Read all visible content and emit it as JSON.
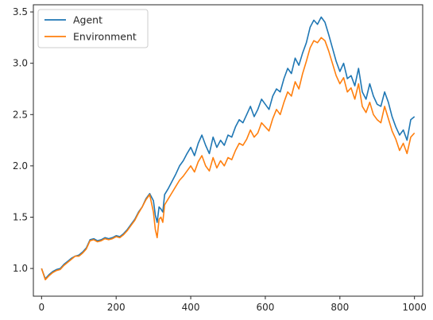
{
  "colors": {
    "agent": "#1f77b4",
    "environment": "#ff7f0e",
    "axis": "#262626",
    "legend_border": "#cccccc"
  },
  "chart_data": {
    "type": "line",
    "title": "",
    "xlabel": "",
    "ylabel": "",
    "xlim": [
      -22,
      1022
    ],
    "ylim": [
      0.73,
      3.57
    ],
    "xticks": [
      0,
      200,
      400,
      600,
      800,
      1000
    ],
    "yticks": [
      1.0,
      1.5,
      2.0,
      2.5,
      3.0,
      3.5
    ],
    "xtick_labels": [
      "0",
      "200",
      "400",
      "600",
      "800",
      "1000"
    ],
    "ytick_labels": [
      "1.0",
      "1.5",
      "2.0",
      "2.5",
      "3.0",
      "3.5"
    ],
    "grid": false,
    "legend_position": "top-left",
    "series": [
      {
        "name": "Agent",
        "color_key": "agent",
        "x": [
          0,
          10,
          20,
          30,
          40,
          50,
          60,
          70,
          80,
          90,
          100,
          110,
          120,
          130,
          140,
          150,
          160,
          170,
          180,
          190,
          200,
          210,
          220,
          230,
          240,
          250,
          260,
          270,
          280,
          290,
          300,
          305,
          310,
          315,
          320,
          325,
          330,
          340,
          350,
          360,
          370,
          380,
          390,
          400,
          410,
          420,
          430,
          440,
          450,
          460,
          470,
          480,
          490,
          500,
          510,
          520,
          530,
          540,
          550,
          560,
          570,
          580,
          590,
          600,
          610,
          620,
          630,
          640,
          650,
          660,
          670,
          680,
          690,
          700,
          710,
          720,
          730,
          740,
          750,
          760,
          770,
          780,
          790,
          800,
          810,
          820,
          830,
          840,
          850,
          860,
          870,
          880,
          890,
          900,
          910,
          920,
          930,
          940,
          950,
          960,
          970,
          980,
          990,
          1000
        ],
        "y": [
          1.0,
          0.9,
          0.94,
          0.97,
          0.99,
          1.0,
          1.04,
          1.07,
          1.1,
          1.12,
          1.13,
          1.16,
          1.2,
          1.28,
          1.29,
          1.27,
          1.28,
          1.3,
          1.29,
          1.3,
          1.32,
          1.31,
          1.34,
          1.38,
          1.43,
          1.48,
          1.55,
          1.6,
          1.68,
          1.73,
          1.66,
          1.52,
          1.45,
          1.6,
          1.58,
          1.55,
          1.72,
          1.78,
          1.85,
          1.92,
          2.0,
          2.05,
          2.12,
          2.18,
          2.1,
          2.22,
          2.3,
          2.2,
          2.12,
          2.28,
          2.18,
          2.25,
          2.2,
          2.3,
          2.28,
          2.38,
          2.45,
          2.42,
          2.5,
          2.58,
          2.48,
          2.55,
          2.65,
          2.6,
          2.55,
          2.68,
          2.75,
          2.72,
          2.85,
          2.95,
          2.9,
          3.05,
          2.98,
          3.1,
          3.2,
          3.35,
          3.42,
          3.38,
          3.45,
          3.4,
          3.28,
          3.15,
          3.02,
          2.92,
          3.0,
          2.85,
          2.88,
          2.78,
          2.95,
          2.72,
          2.65,
          2.8,
          2.68,
          2.6,
          2.58,
          2.72,
          2.62,
          2.48,
          2.38,
          2.3,
          2.35,
          2.25,
          2.45,
          2.48
        ]
      },
      {
        "name": "Environment",
        "color_key": "environment",
        "x": [
          0,
          10,
          20,
          30,
          40,
          50,
          60,
          70,
          80,
          90,
          100,
          110,
          120,
          130,
          140,
          150,
          160,
          170,
          180,
          190,
          200,
          210,
          220,
          230,
          240,
          250,
          260,
          270,
          280,
          290,
          300,
          305,
          310,
          315,
          320,
          325,
          330,
          340,
          350,
          360,
          370,
          380,
          390,
          400,
          410,
          420,
          430,
          440,
          450,
          460,
          470,
          480,
          490,
          500,
          510,
          520,
          530,
          540,
          550,
          560,
          570,
          580,
          590,
          600,
          610,
          620,
          630,
          640,
          650,
          660,
          670,
          680,
          690,
          700,
          710,
          720,
          730,
          740,
          750,
          760,
          770,
          780,
          790,
          800,
          810,
          820,
          830,
          840,
          850,
          860,
          870,
          880,
          890,
          900,
          910,
          920,
          930,
          940,
          950,
          960,
          970,
          980,
          990,
          1000
        ],
        "y": [
          1.0,
          0.89,
          0.93,
          0.96,
          0.98,
          0.99,
          1.03,
          1.06,
          1.09,
          1.12,
          1.12,
          1.15,
          1.19,
          1.27,
          1.28,
          1.26,
          1.27,
          1.29,
          1.28,
          1.29,
          1.31,
          1.3,
          1.33,
          1.37,
          1.42,
          1.47,
          1.54,
          1.6,
          1.67,
          1.72,
          1.55,
          1.38,
          1.3,
          1.48,
          1.5,
          1.45,
          1.62,
          1.68,
          1.74,
          1.8,
          1.86,
          1.9,
          1.95,
          2.0,
          1.94,
          2.04,
          2.1,
          2.0,
          1.95,
          2.08,
          1.98,
          2.05,
          2.0,
          2.08,
          2.06,
          2.15,
          2.22,
          2.2,
          2.26,
          2.35,
          2.28,
          2.32,
          2.42,
          2.38,
          2.34,
          2.46,
          2.55,
          2.5,
          2.62,
          2.72,
          2.68,
          2.82,
          2.75,
          2.9,
          3.02,
          3.15,
          3.22,
          3.2,
          3.25,
          3.22,
          3.12,
          3.0,
          2.88,
          2.8,
          2.86,
          2.72,
          2.76,
          2.65,
          2.8,
          2.58,
          2.52,
          2.62,
          2.5,
          2.45,
          2.42,
          2.58,
          2.46,
          2.34,
          2.26,
          2.15,
          2.22,
          2.12,
          2.28,
          2.32
        ]
      }
    ]
  }
}
